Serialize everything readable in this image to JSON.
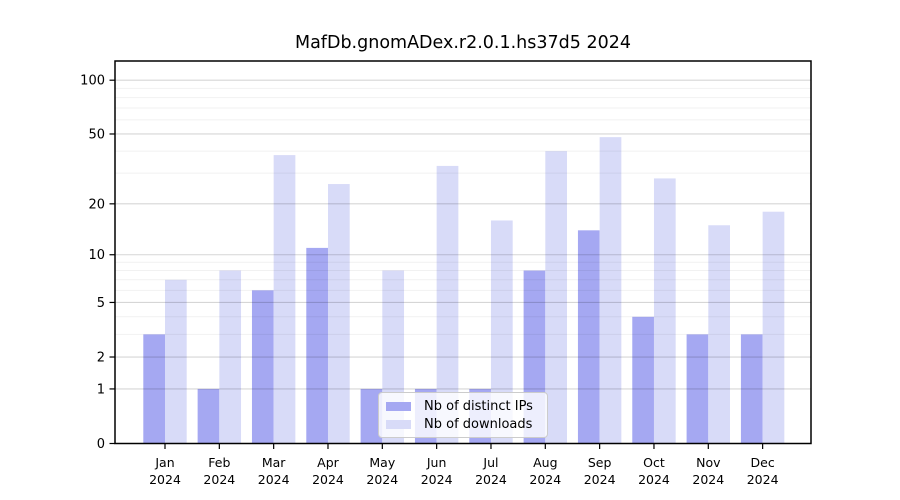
{
  "title": "MafDb.gnomADex.r2.0.1.hs37d5 2024",
  "legend": {
    "items": [
      {
        "label": "Nb of distinct IPs",
        "color": "#a5a8f2"
      },
      {
        "label": "Nb of downloads",
        "color": "#d8dbf8"
      }
    ]
  },
  "chart_data": {
    "type": "bar",
    "title": "MafDb.gnomADex.r2.0.1.hs37d5 2024",
    "categories": [
      "Jan",
      "Feb",
      "Mar",
      "Apr",
      "May",
      "Jun",
      "Jul",
      "Aug",
      "Sep",
      "Oct",
      "Nov",
      "Dec"
    ],
    "year": "2024",
    "series": [
      {
        "name": "Nb of distinct IPs",
        "color": "#a5a8f2",
        "values": [
          3,
          1,
          6,
          11,
          1,
          1,
          1,
          8,
          14,
          4,
          3,
          3
        ]
      },
      {
        "name": "Nb of downloads",
        "color": "#d8dbf8",
        "values": [
          7,
          8,
          38,
          26,
          8,
          33,
          16,
          40,
          48,
          28,
          15,
          18
        ]
      }
    ],
    "yscale": "log1p",
    "yticks": [
      0,
      1,
      2,
      5,
      10,
      20,
      50,
      100
    ],
    "minor_yticks": [
      3,
      4,
      6,
      7,
      8,
      9,
      30,
      40,
      60,
      70,
      80,
      90
    ],
    "ylim": [
      0,
      128
    ],
    "xlabel": "",
    "ylabel": "",
    "grid": true,
    "grid_on_top": true,
    "legend_position": "inside-bottom-center",
    "colors": {
      "frame": "#000000",
      "major_grid": "rgba(0,0,0,0.16)",
      "minor_grid": "rgba(0,0,0,0.055)",
      "background": "#ffffff"
    }
  }
}
